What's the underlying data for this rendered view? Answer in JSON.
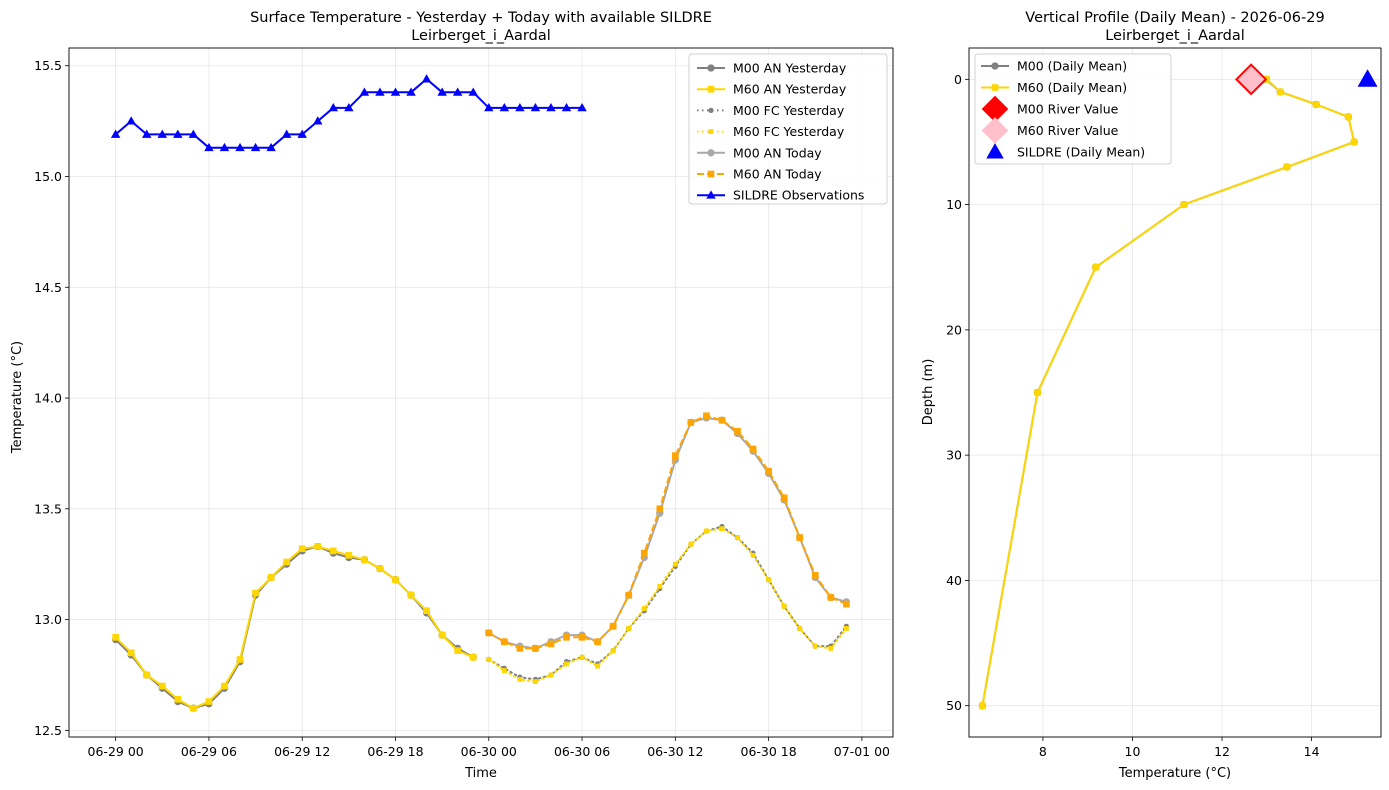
{
  "chart_data": [
    {
      "type": "line",
      "title": "Surface Temperature - Yesterday + Today with available SILDRE",
      "subtitle": "Leirberget_i_Aardal",
      "xlabel": "Time",
      "ylabel": "Temperature (°C)",
      "xlim": [
        "2026-06-28 21:00",
        "2026-07-01 02:00"
      ],
      "ylim": [
        12.47,
        15.58
      ],
      "x_ticks": [
        "06-29 00",
        "06-29 06",
        "06-29 12",
        "06-29 18",
        "06-30 00",
        "06-30 06",
        "06-30 12",
        "06-30 18",
        "07-01 00"
      ],
      "x_tick_times": [
        "2026-06-29 00:00",
        "2026-06-29 06:00",
        "2026-06-29 12:00",
        "2026-06-29 18:00",
        "2026-06-30 00:00",
        "2026-06-30 06:00",
        "2026-06-30 12:00",
        "2026-06-30 18:00",
        "2026-07-01 00:00"
      ],
      "y_ticks": [
        "12.5",
        "13.0",
        "13.5",
        "14.0",
        "14.5",
        "15.0",
        "15.5"
      ],
      "y_tick_values": [
        12.5,
        13.0,
        13.5,
        14.0,
        14.5,
        15.0,
        15.5
      ],
      "grid": true,
      "legend": "top-right",
      "series": [
        {
          "name": "M00 AN Yesterday",
          "color": "#808080",
          "style": "solid",
          "marker": "circle",
          "x_start": "2026-06-29 00:00",
          "x_step_hours": 1,
          "values": [
            12.91,
            12.84,
            12.75,
            12.69,
            12.63,
            12.6,
            12.62,
            12.69,
            12.81,
            13.11,
            13.19,
            13.25,
            13.31,
            13.33,
            13.3,
            13.28,
            13.27,
            13.23,
            13.18,
            13.11,
            13.03,
            12.93,
            12.87,
            12.83
          ]
        },
        {
          "name": "M60 AN Yesterday",
          "color": "#FFD700",
          "style": "solid",
          "marker": "square",
          "x_start": "2026-06-29 00:00",
          "x_step_hours": 1,
          "values": [
            12.92,
            12.85,
            12.75,
            12.7,
            12.64,
            12.6,
            12.63,
            12.7,
            12.82,
            13.12,
            13.19,
            13.26,
            13.32,
            13.33,
            13.31,
            13.29,
            13.27,
            13.23,
            13.18,
            13.11,
            13.04,
            12.93,
            12.86,
            12.83
          ]
        },
        {
          "name": "M00 FC Yesterday",
          "color": "#808080",
          "style": "dotted",
          "marker": "circle",
          "x_start": "2026-06-30 00:00",
          "x_step_hours": 1,
          "values": [
            12.82,
            12.78,
            12.74,
            12.73,
            12.75,
            12.81,
            12.83,
            12.8,
            12.86,
            12.96,
            13.04,
            13.14,
            13.24,
            13.34,
            13.4,
            13.42,
            13.37,
            13.3,
            13.18,
            13.06,
            12.96,
            12.88,
            12.88,
            12.97
          ]
        },
        {
          "name": "M60 FC Yesterday",
          "color": "#FFD700",
          "style": "dotted",
          "marker": "square",
          "x_start": "2026-06-30 00:00",
          "x_step_hours": 1,
          "values": [
            12.82,
            12.77,
            12.73,
            12.72,
            12.75,
            12.8,
            12.83,
            12.79,
            12.86,
            12.96,
            13.05,
            13.15,
            13.25,
            13.34,
            13.4,
            13.41,
            13.37,
            13.29,
            13.18,
            13.06,
            12.96,
            12.88,
            12.87,
            12.96
          ]
        },
        {
          "name": "M00 AN Today",
          "color": "#A9A9A9",
          "style": "solid",
          "marker": "circle",
          "x_start": "2026-06-30 00:00",
          "x_step_hours": 1,
          "values": [
            12.94,
            12.9,
            12.88,
            12.87,
            12.9,
            12.93,
            12.93,
            12.9,
            12.97,
            13.11,
            13.28,
            13.48,
            13.72,
            13.89,
            13.91,
            13.9,
            13.84,
            13.76,
            13.66,
            13.54,
            13.37,
            13.19,
            13.1,
            13.08
          ]
        },
        {
          "name": "M60 AN Today",
          "color": "#FFA500",
          "style": "dashed",
          "marker": "square",
          "x_start": "2026-06-30 00:00",
          "x_step_hours": 1,
          "values": [
            12.94,
            12.9,
            12.87,
            12.87,
            12.89,
            12.92,
            12.92,
            12.9,
            12.97,
            13.11,
            13.3,
            13.5,
            13.74,
            13.89,
            13.92,
            13.9,
            13.85,
            13.77,
            13.67,
            13.55,
            13.37,
            13.2,
            13.1,
            13.07
          ]
        },
        {
          "name": "SILDRE Observations",
          "color": "#0000FF",
          "style": "solid",
          "marker": "triangle",
          "x_start": "2026-06-29 00:00",
          "x_step_hours": 1,
          "values": [
            15.19,
            15.25,
            15.19,
            15.19,
            15.19,
            15.19,
            15.13,
            15.13,
            15.13,
            15.13,
            15.13,
            15.19,
            15.19,
            15.25,
            15.31,
            15.31,
            15.38,
            15.38,
            15.38,
            15.38,
            15.44,
            15.38,
            15.38,
            15.38,
            15.31,
            15.31,
            15.31,
            15.31,
            15.31,
            15.31,
            15.31
          ]
        }
      ]
    },
    {
      "type": "line",
      "title": "Vertical Profile (Daily Mean) - 2026-06-29",
      "subtitle": "Leirberget_i_Aardal",
      "xlabel": "Temperature (°C)",
      "ylabel": "Depth (m)",
      "xlim": [
        6.35,
        15.55
      ],
      "ylim": [
        52.5,
        -2.5
      ],
      "y_inverted": true,
      "x_ticks": [
        "8",
        "10",
        "12",
        "14"
      ],
      "x_tick_values": [
        8,
        10,
        12,
        14
      ],
      "y_ticks": [
        "0",
        "10",
        "20",
        "30",
        "40",
        "50"
      ],
      "y_tick_values": [
        0,
        10,
        20,
        30,
        40,
        50
      ],
      "grid": true,
      "legend": "top-left",
      "series": [
        {
          "name": "M00 (Daily Mean)",
          "color": "#808080",
          "style": "solid",
          "marker": "circle",
          "points": [
            [
              12.98,
              0
            ],
            [
              13.3,
              1
            ],
            [
              14.1,
              2
            ],
            [
              14.82,
              3
            ],
            [
              14.95,
              5
            ],
            [
              13.45,
              7
            ],
            [
              11.15,
              10
            ],
            [
              9.18,
              15
            ],
            [
              7.88,
              25
            ],
            [
              6.65,
              50
            ]
          ]
        },
        {
          "name": "M60 (Daily Mean)",
          "color": "#FFD700",
          "style": "solid",
          "marker": "square",
          "points": [
            [
              13.0,
              0
            ],
            [
              13.3,
              1
            ],
            [
              14.1,
              2
            ],
            [
              14.82,
              3
            ],
            [
              14.95,
              5
            ],
            [
              13.45,
              7
            ],
            [
              11.15,
              10
            ],
            [
              9.18,
              15
            ],
            [
              7.88,
              25
            ],
            [
              6.65,
              50
            ]
          ]
        },
        {
          "name": "M00 River Value",
          "color": "#FF0000",
          "style": "none",
          "marker": "diamond",
          "points": [
            [
              12.65,
              0
            ]
          ]
        },
        {
          "name": "M60 River Value",
          "color": "#FFC0CB",
          "style": "none",
          "marker": "diamond",
          "points": [
            [
              12.65,
              0
            ]
          ]
        },
        {
          "name": "SILDRE (Daily Mean)",
          "color": "#0000FF",
          "style": "none",
          "marker": "triangle",
          "points": [
            [
              15.25,
              0
            ]
          ]
        }
      ]
    }
  ]
}
